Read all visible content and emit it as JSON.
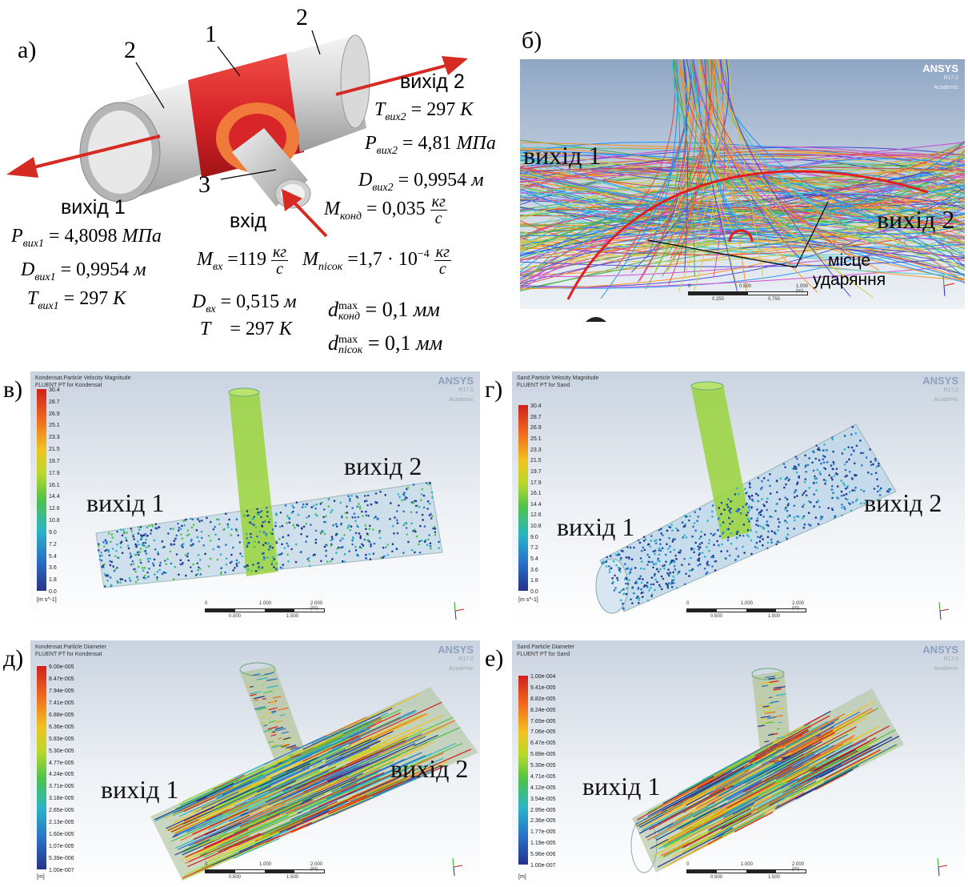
{
  "panel_a": {
    "letter": "а)",
    "part_labels": [
      "1",
      "2",
      "2",
      "3"
    ],
    "outlet1_label": "вихід 1",
    "outlet2_label": "вихід 2",
    "inlet_label": "вхід",
    "p_out1": "= 4,8098",
    "p_out1_unit": "МПа",
    "d_out1": "= 0,9954",
    "d_out1_unit": "м",
    "t_out1": "= 297",
    "t_out1_unit": "К",
    "t_out2": "= 297",
    "t_out2_unit": "К",
    "p_out2": "= 4,81",
    "p_out2_unit": "МПа",
    "d_out2": "= 0,9954",
    "d_out2_unit": "м",
    "m_cond": "= 0,035",
    "m_in": "=119",
    "m_sand": "=1,7 · 10",
    "m_sand_exp": "−4",
    "mass_unit_num": "кг",
    "mass_unit_den": "с",
    "d_in": "= 0,515",
    "d_in_unit": "м",
    "t_in": "= 297",
    "t_in_unit": "К",
    "dcond_max": "= 0,1",
    "dsand_max": "= 0,1",
    "dmax_unit": "мм",
    "sym_P": "P",
    "sym_D": "D",
    "sym_T": "T",
    "sym_M": "M",
    "sym_d": "d",
    "sub_out1": "вих1",
    "sub_out2": "вих2",
    "sub_in": "вх",
    "sub_cond": "конд",
    "sub_sand": "пісок",
    "sup_max": "max"
  },
  "panel_b": {
    "letter": "б)",
    "outlet1_label": "вихід 1",
    "outlet2_label": "вихід 2",
    "impact_label_1": "місце",
    "impact_label_2": "ударяння",
    "brand": "ANSYS",
    "version": "R17.0",
    "edition": "Academic",
    "scale_ticks": [
      "0",
      "0.500",
      "1.000 (m)"
    ],
    "scale_subticks": [
      "0.250",
      "0.750"
    ]
  },
  "panel_v": {
    "letter": "в)",
    "title_1": "Kondensat.Particle Velocity Magnitude",
    "title_2": "FLUENT PT for Kondensat",
    "colorbar": [
      "30.4",
      "28.7",
      "26.9",
      "25.1",
      "23.3",
      "21.5",
      "19.7",
      "17.9",
      "16.1",
      "14.4",
      "12.6",
      "10.8",
      "9.0",
      "7.2",
      "5.4",
      "3.6",
      "1.8",
      "0.0"
    ],
    "unit": "[m s^-1]",
    "outlet1_label": "вихід 1",
    "outlet2_label": "вихід 2",
    "brand": "ANSYS",
    "version": "R17.0",
    "edition": "Academic",
    "scale_ticks": [
      "0",
      "1.000",
      "2.000 (m)"
    ],
    "scale_subticks": [
      "0.500",
      "1.500"
    ]
  },
  "panel_g": {
    "letter": "г)",
    "title_1": "Sand.Particle Velocity Magnitude",
    "title_2": "FLUENT PT for Sand",
    "colorbar": [
      "30.4",
      "28.7",
      "26.9",
      "25.1",
      "23.3",
      "21.5",
      "19.7",
      "17.9",
      "16.1",
      "14.4",
      "12.6",
      "10.8",
      "9.0",
      "7.2",
      "5.4",
      "3.6",
      "1.8",
      "0.0"
    ],
    "unit": "[m s^-1]",
    "outlet1_label": "вихід 1",
    "outlet2_label": "вихід 2",
    "brand": "ANSYS",
    "version": "R17.0",
    "edition": "Academic",
    "scale_ticks": [
      "0",
      "1.000",
      "2.000 (m)"
    ],
    "scale_subticks": [
      "0.500",
      "1.500"
    ]
  },
  "panel_d": {
    "letter": "д)",
    "title_1": "Kondensat.Particle Diameter",
    "title_2": "FLUENT PT for Kondensat",
    "colorbar": [
      "9.00e-005",
      "8.47e-005",
      "7.94e-005",
      "7.41e-005",
      "6.88e-005",
      "6.36e-005",
      "5.83e-005",
      "5.30e-005",
      "4.77e-005",
      "4.24e-005",
      "3.71e-005",
      "3.18e-005",
      "2.65e-005",
      "2.13e-005",
      "1.60e-005",
      "1.07e-005",
      "5.39e-006",
      "1.00e-007"
    ],
    "unit": "[m]",
    "outlet1_label": "вихід 1",
    "outlet2_label": "вихід 2",
    "brand": "ANSYS",
    "version": "R17.0",
    "edition": "Academic",
    "scale_ticks": [
      "0",
      "1.000",
      "2.000 (m)"
    ],
    "scale_subticks": [
      "0.500",
      "1.500"
    ]
  },
  "panel_e": {
    "letter": "е)",
    "title_1": "Sand.Particle Diameter",
    "title_2": "FLUENT PT for Sand",
    "colorbar": [
      "1.00e-004",
      "9.41e-005",
      "8.82e-005",
      "8.24e-005",
      "7.65e-005",
      "7.06e-005",
      "6.47e-005",
      "5.89e-005",
      "5.30e-005",
      "4.71e-005",
      "4.12e-005",
      "3.54e-005",
      "2.95e-005",
      "2.36e-005",
      "1.77e-005",
      "1.19e-005",
      "5.96e-006",
      "1.00e-007"
    ],
    "unit": "[m]",
    "outlet1_label": "вихід 1",
    "brand": "ANSYS",
    "version": "R17.0",
    "edition": "Academic",
    "scale_ticks": [
      "0",
      "1.000",
      "2.000 (m)"
    ],
    "scale_subticks": [
      "0.500",
      "1.500"
    ]
  },
  "colors": {
    "pipe_red": "#d8252a",
    "pipe_grey": "#c8c8c8",
    "arrow_red": "#d62b22",
    "impact_curve": "#e02020",
    "stream_green": "#8fd23a"
  }
}
